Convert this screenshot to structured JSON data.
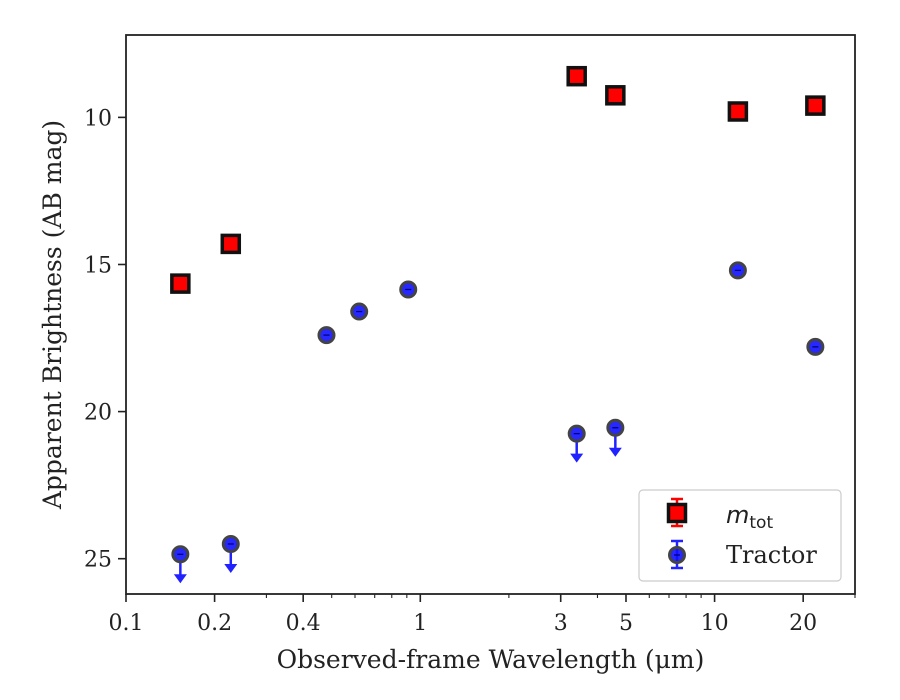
{
  "chart_data": {
    "type": "scatter",
    "xlabel": "Observed-frame Wavelength (μm)",
    "ylabel": "Apparent Brightness (AB mag)",
    "x_scale": "log",
    "xlim": [
      0.1,
      30
    ],
    "ylim": [
      26.2,
      7.2
    ],
    "y_inverted": true,
    "x_ticks": [
      {
        "value": 0.1,
        "label": "0.1"
      },
      {
        "value": 0.2,
        "label": "0.2"
      },
      {
        "value": 0.4,
        "label": "0.4"
      },
      {
        "value": 1,
        "label": "1"
      },
      {
        "value": 3,
        "label": "3"
      },
      {
        "value": 5,
        "label": "5"
      },
      {
        "value": 10,
        "label": "10"
      },
      {
        "value": 20,
        "label": "20"
      }
    ],
    "y_ticks": [
      {
        "value": 10,
        "label": "10"
      },
      {
        "value": 15,
        "label": "15"
      },
      {
        "value": 20,
        "label": "20"
      },
      {
        "value": 25,
        "label": "25"
      }
    ],
    "grid": false,
    "legend": "bottom-right",
    "series": [
      {
        "name": "m",
        "name_sub": "tot",
        "marker": "square",
        "color": "#ff0000",
        "edge_color": "#111111",
        "points": [
          {
            "x": 0.153,
            "y": 15.65
          },
          {
            "x": 0.227,
            "y": 14.3
          },
          {
            "x": 3.4,
            "y": 8.6
          },
          {
            "x": 4.6,
            "y": 9.25
          },
          {
            "x": 12.0,
            "y": 9.8
          },
          {
            "x": 22.0,
            "y": 9.6
          }
        ]
      },
      {
        "name": "Tractor",
        "marker": "circle",
        "color": "#1010ff",
        "edge_color": "#444444",
        "points": [
          {
            "x": 0.153,
            "y": 24.85,
            "upper_limit": true
          },
          {
            "x": 0.227,
            "y": 24.5,
            "upper_limit": true
          },
          {
            "x": 0.48,
            "y": 17.4
          },
          {
            "x": 0.62,
            "y": 16.6
          },
          {
            "x": 0.91,
            "y": 15.85
          },
          {
            "x": 3.4,
            "y": 20.75,
            "upper_limit": true
          },
          {
            "x": 4.6,
            "y": 20.55,
            "upper_limit": true
          },
          {
            "x": 12.0,
            "y": 15.2
          },
          {
            "x": 22.0,
            "y": 17.8
          }
        ]
      }
    ]
  }
}
